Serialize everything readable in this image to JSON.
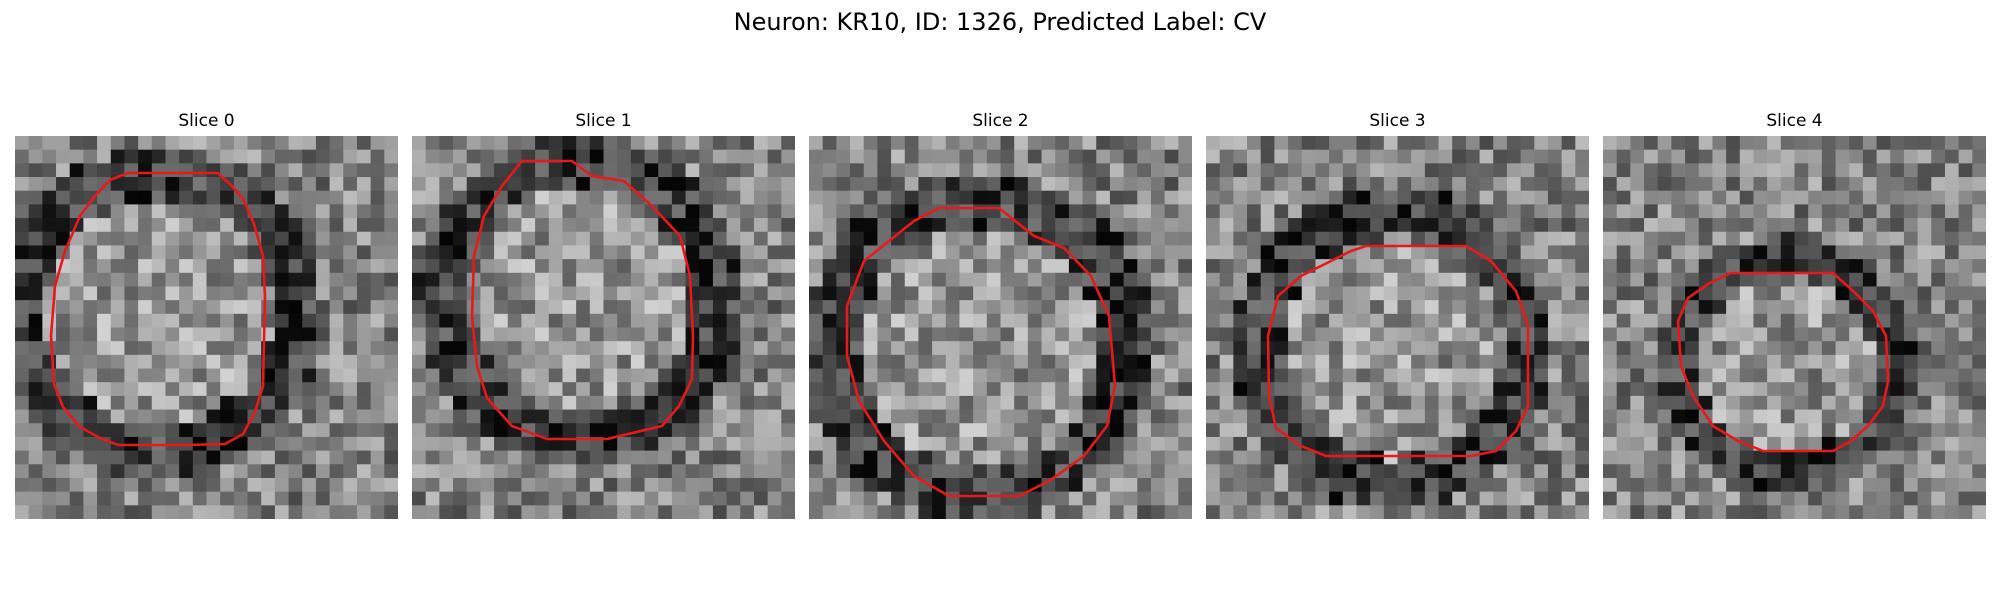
{
  "figure": {
    "title": "Neuron: KR10, ID: 1326, Predicted Label: CV"
  },
  "panels": [
    {
      "title": "Slice 0"
    },
    {
      "title": "Slice 1"
    },
    {
      "title": "Slice 2"
    },
    {
      "title": "Slice 3"
    },
    {
      "title": "Slice 4"
    }
  ],
  "colors": {
    "contour": "#e8191c",
    "background": "#ffffff"
  }
}
